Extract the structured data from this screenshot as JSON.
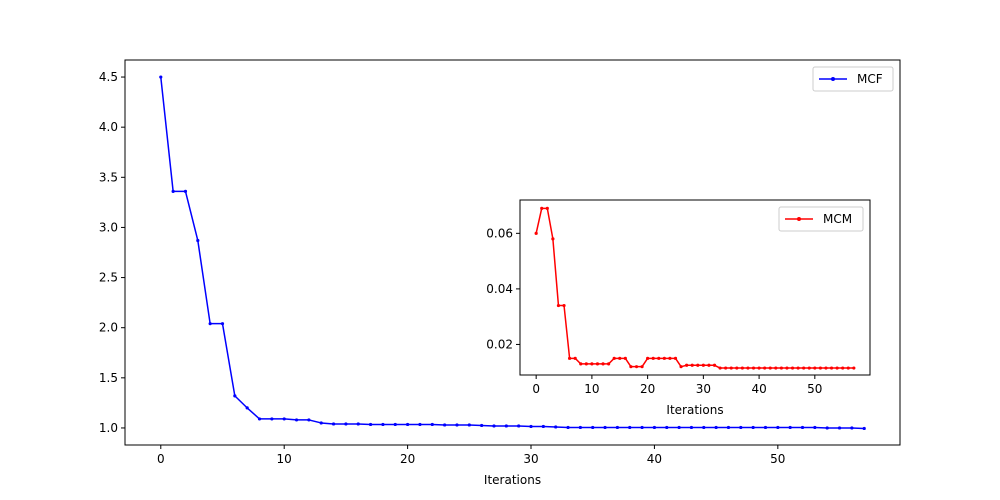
{
  "chart_data": [
    {
      "type": "line",
      "xlabel": "Iterations",
      "ylabel": "",
      "xlim": [
        -2.9,
        59.9
      ],
      "ylim": [
        0.83,
        4.67
      ],
      "xticks": [
        0,
        10,
        20,
        30,
        40,
        50
      ],
      "yticks": [
        1.0,
        1.5,
        2.0,
        2.5,
        3.0,
        3.5,
        4.0,
        4.5
      ],
      "ytick_decimals": 1,
      "legend_position": "top-right",
      "series": [
        {
          "name": "MCF",
          "color": "#0000ff",
          "x": [
            0,
            1,
            2,
            3,
            4,
            5,
            6,
            7,
            8,
            9,
            10,
            11,
            12,
            13,
            14,
            15,
            16,
            17,
            18,
            19,
            20,
            21,
            22,
            23,
            24,
            25,
            26,
            27,
            28,
            29,
            30,
            31,
            32,
            33,
            34,
            35,
            36,
            37,
            38,
            39,
            40,
            41,
            42,
            43,
            44,
            45,
            46,
            47,
            48,
            49,
            50,
            51,
            52,
            53,
            54,
            55,
            56,
            57
          ],
          "y": [
            4.5,
            3.36,
            3.36,
            2.87,
            2.04,
            2.04,
            1.32,
            1.2,
            1.09,
            1.09,
            1.09,
            1.08,
            1.08,
            1.05,
            1.04,
            1.04,
            1.04,
            1.035,
            1.035,
            1.035,
            1.035,
            1.035,
            1.035,
            1.03,
            1.03,
            1.03,
            1.025,
            1.02,
            1.02,
            1.02,
            1.015,
            1.015,
            1.01,
            1.005,
            1.005,
            1.005,
            1.005,
            1.005,
            1.005,
            1.005,
            1.005,
            1.005,
            1.005,
            1.005,
            1.005,
            1.005,
            1.005,
            1.005,
            1.005,
            1.005,
            1.005,
            1.005,
            1.005,
            1.005,
            1.0,
            1.0,
            1.0,
            0.995
          ]
        }
      ]
    },
    {
      "type": "line",
      "xlabel": "Iterations",
      "ylabel": "",
      "xlim": [
        -2.9,
        59.9
      ],
      "ylim": [
        0.009,
        0.072
      ],
      "xticks": [
        0,
        10,
        20,
        30,
        40,
        50
      ],
      "yticks": [
        0.02,
        0.04,
        0.06
      ],
      "ytick_decimals": 2,
      "legend_position": "top-right",
      "series": [
        {
          "name": "MCM",
          "color": "#ff0000",
          "x": [
            0,
            1,
            2,
            3,
            4,
            5,
            6,
            7,
            8,
            9,
            10,
            11,
            12,
            13,
            14,
            15,
            16,
            17,
            18,
            19,
            20,
            21,
            22,
            23,
            24,
            25,
            26,
            27,
            28,
            29,
            30,
            31,
            32,
            33,
            34,
            35,
            36,
            37,
            38,
            39,
            40,
            41,
            42,
            43,
            44,
            45,
            46,
            47,
            48,
            49,
            50,
            51,
            52,
            53,
            54,
            55,
            56,
            57
          ],
          "y": [
            0.06,
            0.069,
            0.069,
            0.058,
            0.034,
            0.034,
            0.015,
            0.015,
            0.013,
            0.013,
            0.013,
            0.013,
            0.013,
            0.013,
            0.015,
            0.015,
            0.015,
            0.012,
            0.012,
            0.012,
            0.015,
            0.015,
            0.015,
            0.015,
            0.015,
            0.015,
            0.012,
            0.0125,
            0.0125,
            0.0125,
            0.0125,
            0.0125,
            0.0125,
            0.0115,
            0.0115,
            0.0115,
            0.0115,
            0.0115,
            0.0115,
            0.0115,
            0.0115,
            0.0115,
            0.0115,
            0.0115,
            0.0115,
            0.0115,
            0.0115,
            0.0115,
            0.0115,
            0.0115,
            0.0115,
            0.0115,
            0.0115,
            0.0115,
            0.0115,
            0.0115,
            0.0115,
            0.0115
          ]
        }
      ]
    }
  ]
}
